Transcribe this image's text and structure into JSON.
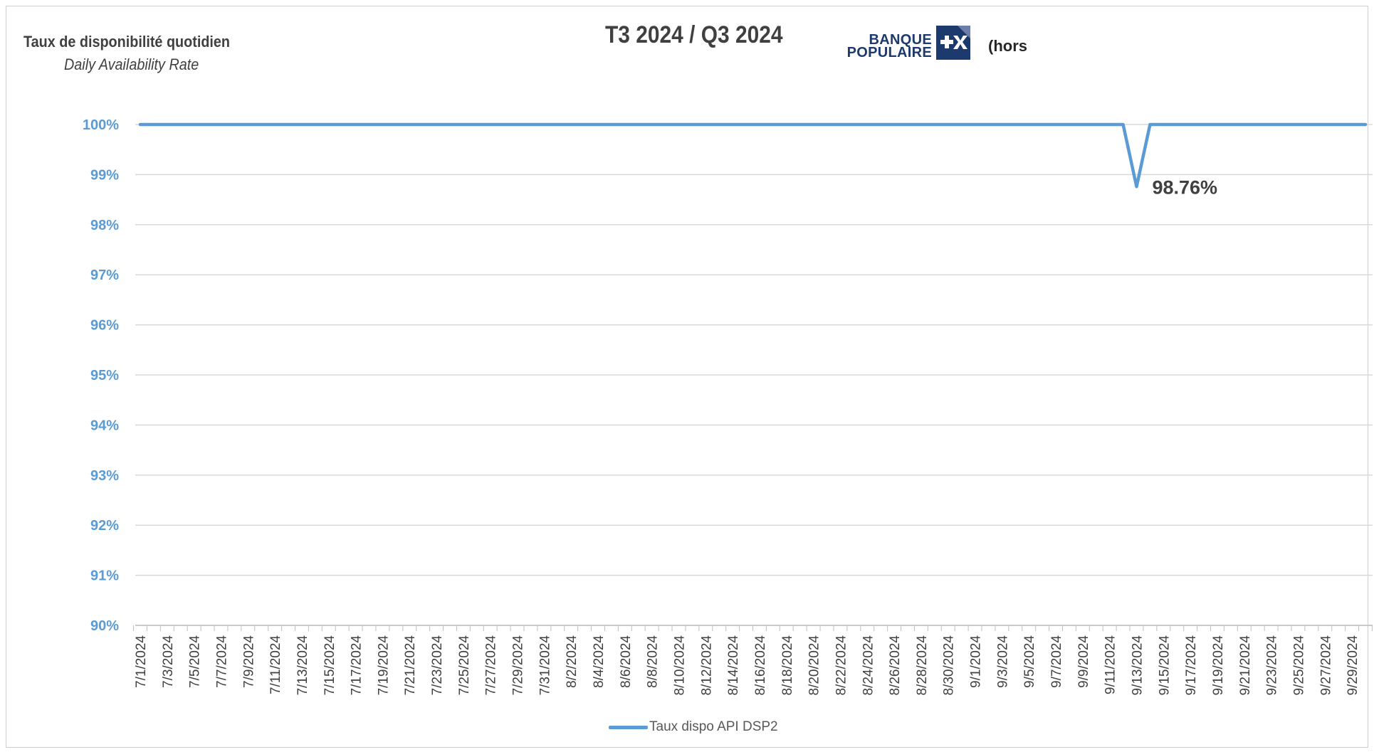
{
  "header": {
    "title": "T3 2024 / Q3 2024",
    "y_title_fr": "Taux de disponibilité quotidien",
    "y_title_en": "Daily Availability Rate",
    "logo": {
      "line1": "BANQUE",
      "line2": "POPULAIRE",
      "mark_icon": "plus-x-icon"
    },
    "note": "(hors"
  },
  "legend": {
    "label": "Taux dispo API DSP2"
  },
  "colors": {
    "series": "#5b9bd5",
    "axis_text": "#5b9bd5",
    "grid": "#d9d9d9",
    "logo": "#1d3a6e"
  },
  "chart_data": {
    "type": "line",
    "title": "T3 2024 / Q3 2024",
    "ylabel": "Taux de disponibilité quotidien / Daily Availability Rate",
    "xlabel": "",
    "ylim": [
      90,
      100
    ],
    "yticks": [
      "90%",
      "91%",
      "92%",
      "93%",
      "94%",
      "95%",
      "96%",
      "97%",
      "98%",
      "99%",
      "100%"
    ],
    "grid": true,
    "legend": "bottom",
    "xticks": [
      "7/1/2024",
      "7/3/2024",
      "7/5/2024",
      "7/7/2024",
      "7/9/2024",
      "7/11/2024",
      "7/13/2024",
      "7/15/2024",
      "7/17/2024",
      "7/19/2024",
      "7/21/2024",
      "7/23/2024",
      "7/25/2024",
      "7/27/2024",
      "7/29/2024",
      "7/31/2024",
      "8/2/2024",
      "8/4/2024",
      "8/6/2024",
      "8/8/2024",
      "8/10/2024",
      "8/12/2024",
      "8/14/2024",
      "8/16/2024",
      "8/18/2024",
      "8/20/2024",
      "8/22/2024",
      "8/24/2024",
      "8/26/2024",
      "8/28/2024",
      "8/30/2024",
      "9/1/2024",
      "9/3/2024",
      "9/5/2024",
      "9/7/2024",
      "9/9/2024",
      "9/11/2024",
      "9/13/2024",
      "9/15/2024",
      "9/17/2024",
      "9/19/2024",
      "9/21/2024",
      "9/23/2024",
      "9/25/2024",
      "9/27/2024",
      "9/29/2024"
    ],
    "series": [
      {
        "name": "Taux dispo API DSP2",
        "x_start": "7/1/2024",
        "x_end": "9/30/2024",
        "values": [
          100,
          100,
          100,
          100,
          100,
          100,
          100,
          100,
          100,
          100,
          100,
          100,
          100,
          100,
          100,
          100,
          100,
          100,
          100,
          100,
          100,
          100,
          100,
          100,
          100,
          100,
          100,
          100,
          100,
          100,
          100,
          100,
          100,
          100,
          100,
          100,
          100,
          100,
          100,
          100,
          100,
          100,
          100,
          100,
          100,
          100,
          100,
          100,
          100,
          100,
          100,
          100,
          100,
          100,
          100,
          100,
          100,
          100,
          100,
          100,
          100,
          100,
          100,
          100,
          100,
          100,
          100,
          100,
          100,
          100,
          100,
          100,
          100,
          100,
          98.76,
          100,
          100,
          100,
          100,
          100,
          100,
          100,
          100,
          100,
          100,
          100,
          100,
          100,
          100,
          100,
          100,
          100
        ]
      }
    ],
    "annotations": [
      {
        "x": "9/14/2024",
        "y": 98.76,
        "text": "98.76%"
      }
    ]
  }
}
